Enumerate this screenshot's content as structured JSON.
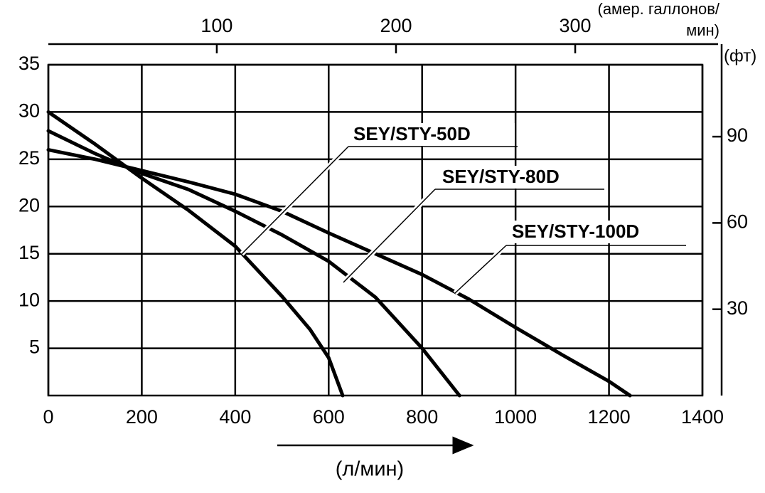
{
  "chart_data": {
    "type": "line",
    "x_label": "(л/мин)",
    "x2_label": [
      "(амер. галлонов/",
      "мин)"
    ],
    "y2_label": "(фт)",
    "xlim": [
      0,
      1400
    ],
    "xticks": [
      0,
      200,
      400,
      600,
      800,
      1000,
      1200,
      1400
    ],
    "ylim": [
      0,
      35
    ],
    "yticks": [
      5,
      10,
      15,
      20,
      25,
      30,
      35
    ],
    "x2lim": [
      6,
      371
    ],
    "x2ticks": [
      100,
      200,
      300
    ],
    "y2lim": [
      0,
      115
    ],
    "y2ticks": [
      30,
      60,
      90
    ],
    "grid": true,
    "series": [
      {
        "name": "SEY/STY-50D",
        "color": "#000000",
        "x": [
          0,
          100,
          200,
          300,
          400,
          500,
          560,
          600,
          630
        ],
        "values": [
          30,
          26.6,
          23,
          19.6,
          15.8,
          10.5,
          7,
          4,
          0
        ]
      },
      {
        "name": "SEY/STY-80D",
        "color": "#000000",
        "x": [
          0,
          100,
          200,
          300,
          400,
          500,
          600,
          700,
          800,
          880
        ],
        "values": [
          28,
          25.6,
          23.5,
          21.8,
          19.5,
          17,
          14.2,
          10.4,
          5,
          0
        ]
      },
      {
        "name": "SEY/STY-100D",
        "color": "#000000",
        "x": [
          0,
          100,
          200,
          300,
          400,
          500,
          600,
          700,
          800,
          900,
          1000,
          1100,
          1200,
          1245
        ],
        "values": [
          26,
          25,
          23.8,
          22.6,
          21.3,
          19.5,
          17.2,
          15,
          12.8,
          10.2,
          7.2,
          4.3,
          1.5,
          0
        ]
      }
    ]
  }
}
